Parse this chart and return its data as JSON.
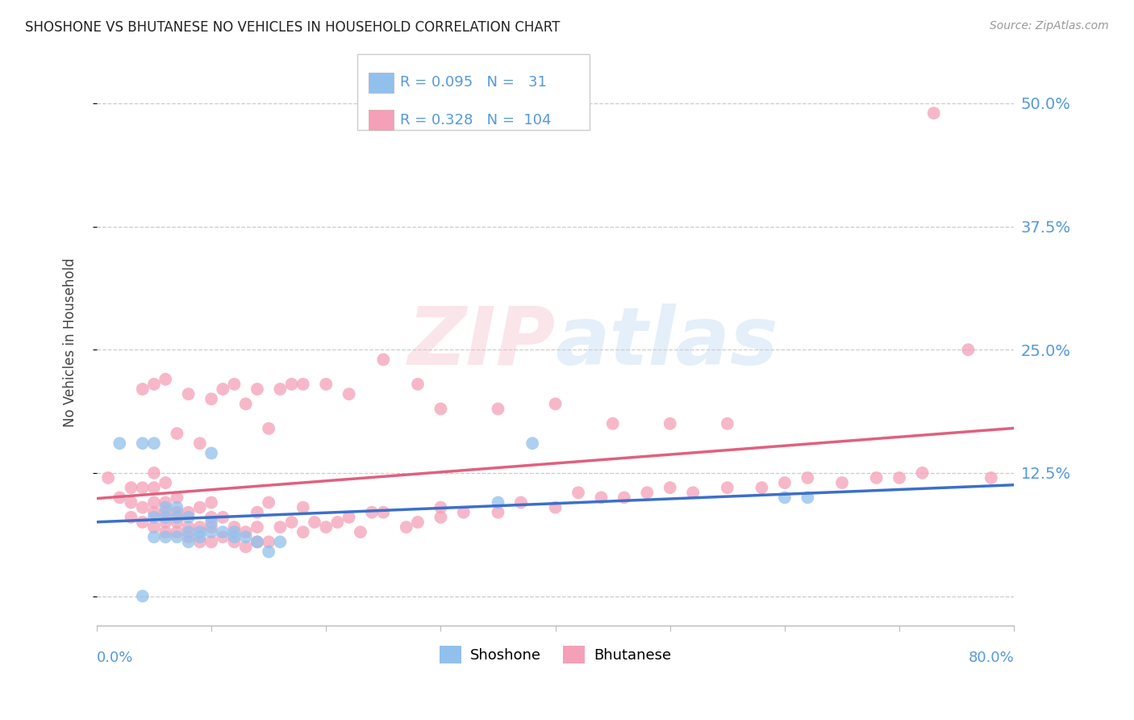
{
  "title": "SHOSHONE VS BHUTANESE NO VEHICLES IN HOUSEHOLD CORRELATION CHART",
  "source": "Source: ZipAtlas.com",
  "ylabel": "No Vehicles in Household",
  "ytick_labels": [
    "",
    "12.5%",
    "25.0%",
    "37.5%",
    "50.0%"
  ],
  "ytick_values": [
    0.0,
    0.125,
    0.25,
    0.375,
    0.5
  ],
  "xmin": 0.0,
  "xmax": 0.8,
  "ymin": -0.03,
  "ymax": 0.545,
  "shoshone_R": 0.095,
  "shoshone_N": 31,
  "bhutanese_R": 0.328,
  "bhutanese_N": 104,
  "shoshone_color": "#92C0EC",
  "bhutanese_color": "#F4A0B8",
  "shoshone_line_color": "#3B6FCC",
  "bhutanese_line_color": "#E06080",
  "legend_shoshone": "Shoshone",
  "legend_bhutanese": "Bhutanese",
  "title_color": "#222222",
  "axis_label_color": "#5599DD",
  "shoshone_x": [
    0.02,
    0.04,
    0.05,
    0.05,
    0.06,
    0.06,
    0.07,
    0.07,
    0.08,
    0.08,
    0.09,
    0.1,
    0.1,
    0.11,
    0.12,
    0.13,
    0.14,
    0.15,
    0.16,
    0.35,
    0.38,
    0.6,
    0.62,
    0.04,
    0.05,
    0.06,
    0.07,
    0.08,
    0.09,
    0.1,
    0.12
  ],
  "shoshone_y": [
    0.155,
    0.155,
    0.08,
    0.155,
    0.08,
    0.09,
    0.08,
    0.09,
    0.065,
    0.08,
    0.065,
    0.065,
    0.075,
    0.065,
    0.065,
    0.06,
    0.055,
    0.045,
    0.055,
    0.095,
    0.155,
    0.1,
    0.1,
    0.0,
    0.06,
    0.06,
    0.06,
    0.055,
    0.06,
    0.145,
    0.06
  ],
  "bhutanese_x": [
    0.01,
    0.02,
    0.03,
    0.03,
    0.03,
    0.04,
    0.04,
    0.04,
    0.05,
    0.05,
    0.05,
    0.05,
    0.05,
    0.06,
    0.06,
    0.06,
    0.06,
    0.06,
    0.07,
    0.07,
    0.07,
    0.07,
    0.08,
    0.08,
    0.08,
    0.09,
    0.09,
    0.09,
    0.1,
    0.1,
    0.1,
    0.1,
    0.11,
    0.11,
    0.12,
    0.12,
    0.13,
    0.13,
    0.14,
    0.14,
    0.14,
    0.15,
    0.15,
    0.16,
    0.17,
    0.18,
    0.18,
    0.19,
    0.2,
    0.21,
    0.22,
    0.23,
    0.24,
    0.25,
    0.27,
    0.28,
    0.3,
    0.3,
    0.32,
    0.35,
    0.37,
    0.4,
    0.42,
    0.44,
    0.46,
    0.48,
    0.5,
    0.52,
    0.55,
    0.58,
    0.6,
    0.62,
    0.65,
    0.68,
    0.7,
    0.72,
    0.73,
    0.76,
    0.78,
    0.04,
    0.05,
    0.06,
    0.07,
    0.08,
    0.09,
    0.1,
    0.11,
    0.12,
    0.13,
    0.14,
    0.15,
    0.16,
    0.17,
    0.18,
    0.2,
    0.22,
    0.25,
    0.28,
    0.3,
    0.35,
    0.4,
    0.45,
    0.5,
    0.55
  ],
  "bhutanese_y": [
    0.12,
    0.1,
    0.08,
    0.095,
    0.11,
    0.075,
    0.09,
    0.11,
    0.07,
    0.085,
    0.095,
    0.11,
    0.125,
    0.065,
    0.075,
    0.085,
    0.095,
    0.115,
    0.065,
    0.075,
    0.085,
    0.1,
    0.06,
    0.07,
    0.085,
    0.055,
    0.07,
    0.09,
    0.055,
    0.07,
    0.08,
    0.095,
    0.06,
    0.08,
    0.055,
    0.07,
    0.05,
    0.065,
    0.055,
    0.07,
    0.085,
    0.055,
    0.095,
    0.07,
    0.075,
    0.065,
    0.09,
    0.075,
    0.07,
    0.075,
    0.08,
    0.065,
    0.085,
    0.085,
    0.07,
    0.075,
    0.08,
    0.09,
    0.085,
    0.085,
    0.095,
    0.09,
    0.105,
    0.1,
    0.1,
    0.105,
    0.11,
    0.105,
    0.11,
    0.11,
    0.115,
    0.12,
    0.115,
    0.12,
    0.12,
    0.125,
    0.49,
    0.25,
    0.12,
    0.21,
    0.215,
    0.22,
    0.165,
    0.205,
    0.155,
    0.2,
    0.21,
    0.215,
    0.195,
    0.21,
    0.17,
    0.21,
    0.215,
    0.215,
    0.215,
    0.205,
    0.24,
    0.215,
    0.19,
    0.19,
    0.195,
    0.175,
    0.175,
    0.175
  ]
}
